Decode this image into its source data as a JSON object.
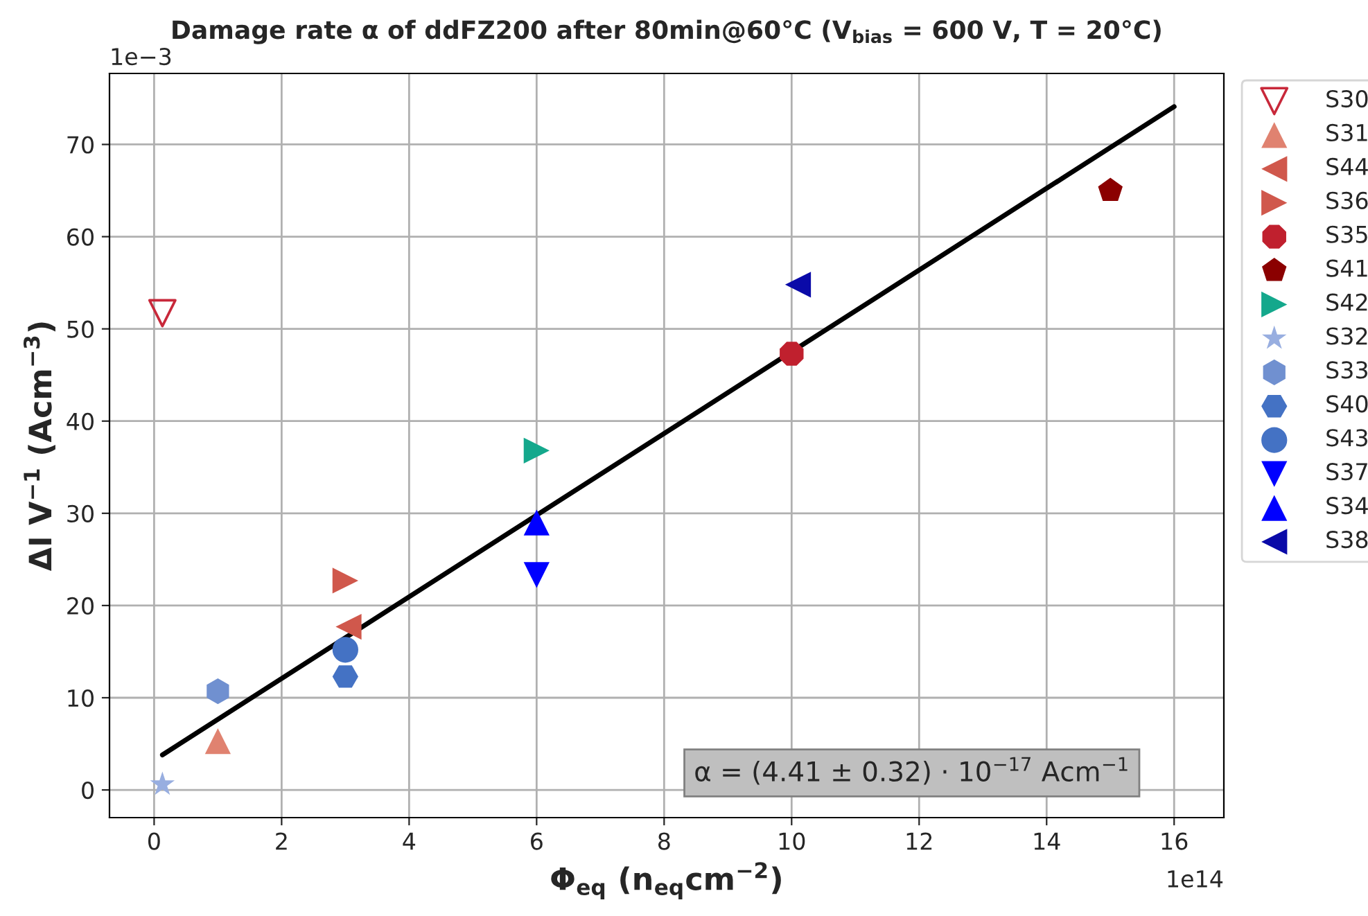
{
  "chart_data": {
    "type": "scatter",
    "title": "Damage rate α of ddFZ200 after 80min@60°C (V$_{bias}$ = 600 V, T = 20°C)",
    "xlabel": "Φ$_{eq}$ (n$_{eq}$cm$^{−2}$)",
    "ylabel": "ΔI V$^{−1}$ (Acm$^{−3}$)",
    "xlim": [
      -0.7,
      16.78
    ],
    "ylim": [
      -3.0,
      77.7
    ],
    "xticks": [
      0,
      2,
      4,
      6,
      8,
      10,
      12,
      14,
      16
    ],
    "yticks": [
      0,
      10,
      20,
      30,
      40,
      50,
      60,
      70
    ],
    "grid": true,
    "legend": "right",
    "annotations": [
      "1e−3",
      "1e14",
      "α = (4.41 ± 0.32) · 10$^{−17}$ Acm$^{−1}$"
    ],
    "series": [
      {
        "name": "S30",
        "color": "#c8283a",
        "marker": "triangle",
        "x": [
          0.13
        ],
        "values": [
          51.7
        ]
      },
      {
        "name": "S31",
        "color": "#e08270",
        "marker": "triangle",
        "x": [
          1.0
        ],
        "values": [
          5.3
        ]
      },
      {
        "name": "S44",
        "color": "#d0584c",
        "marker": "triangle",
        "x": [
          3.05
        ],
        "values": [
          17.7
        ]
      },
      {
        "name": "S36",
        "color": "#d0584c",
        "marker": "triangle",
        "x": [
          3.0
        ],
        "values": [
          22.7
        ]
      },
      {
        "name": "S35",
        "color": "#c0202e",
        "x": [
          10.0
        ],
        "values": [
          47.3
        ]
      },
      {
        "name": "S41",
        "color": "#8b0000",
        "x": [
          15.0
        ],
        "values": [
          65.0
        ]
      },
      {
        "name": "S42",
        "color": "#14a88c",
        "marker": "triangle",
        "x": [
          6.0
        ],
        "values": [
          36.8
        ]
      },
      {
        "name": "S32",
        "color": "#98aee0",
        "marker": "star",
        "x": [
          0.13
        ],
        "values": [
          0.6
        ]
      },
      {
        "name": "S33",
        "color": "#7090d0",
        "x": [
          1.0
        ],
        "values": [
          10.7
        ]
      },
      {
        "name": "S40",
        "color": "#4472c4",
        "x": [
          3.0
        ],
        "values": [
          12.3
        ]
      },
      {
        "name": "S43",
        "color": "#4472c4",
        "marker": "circle",
        "x": [
          3.0
        ],
        "values": [
          15.2
        ]
      },
      {
        "name": "S37",
        "color": "#0000ff",
        "marker": "triangle",
        "x": [
          6.0
        ],
        "values": [
          23.3
        ]
      },
      {
        "name": "S34",
        "color": "#0000ff",
        "marker": "triangle",
        "x": [
          6.0
        ],
        "values": [
          29.0
        ]
      },
      {
        "name": "S38",
        "color": "#0a0aa8",
        "marker": "triangle",
        "x": [
          10.1
        ],
        "values": [
          54.8
        ]
      },
      {
        "type": "line",
        "color": "#000000",
        "x": [
          0.13,
          16.0
        ],
        "values": [
          3.8,
          74.1
        ]
      }
    ]
  }
}
